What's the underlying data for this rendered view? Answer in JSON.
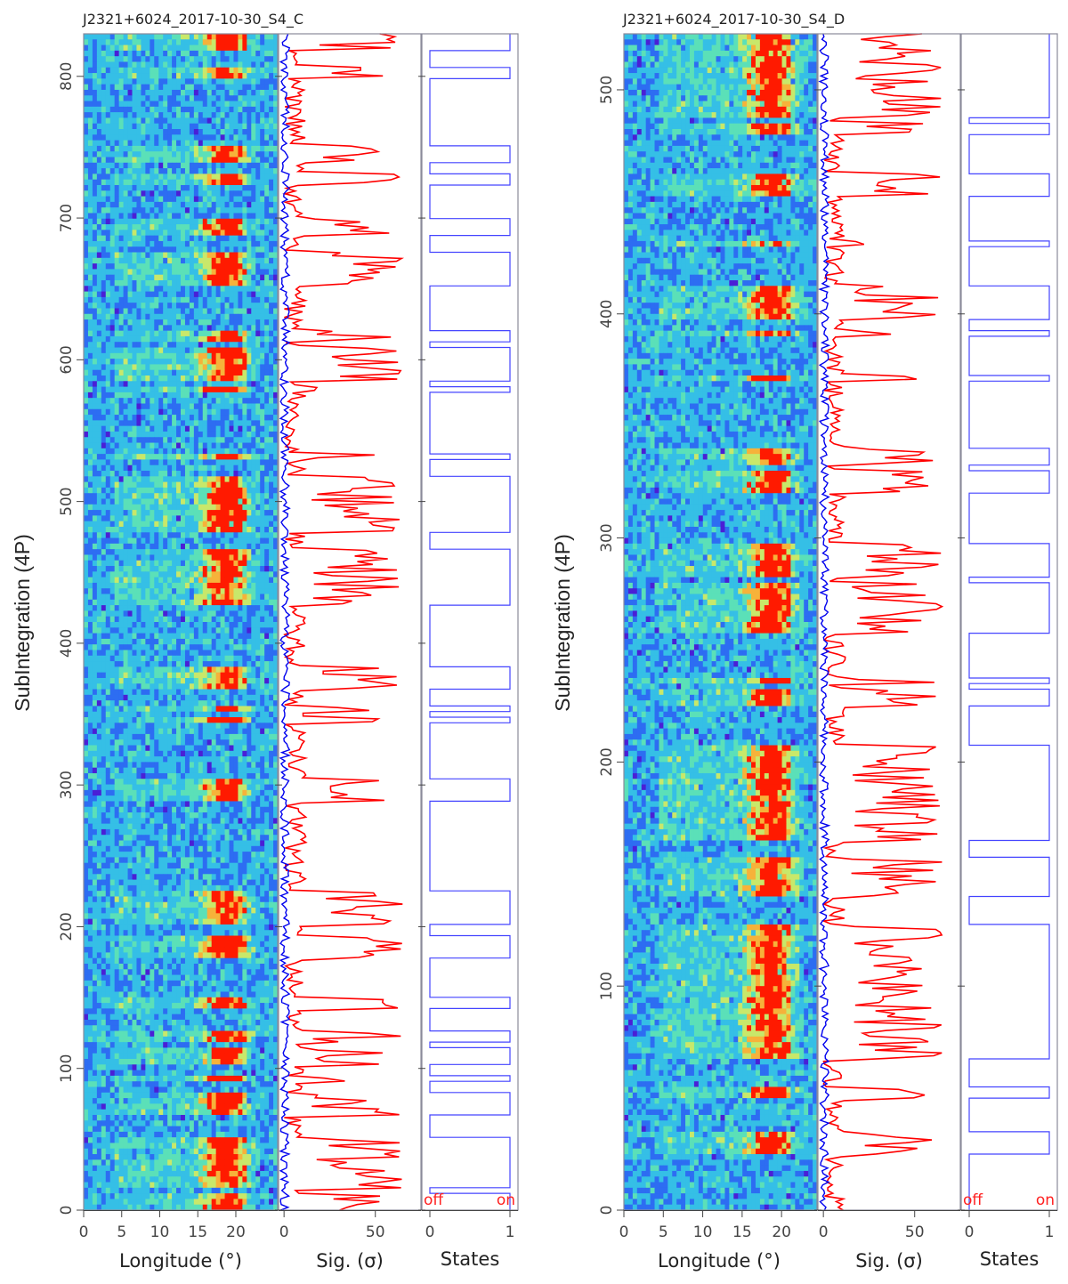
{
  "chart_data": [
    {
      "type": "heatmap",
      "title": "J2321+6024_2017-10-30_S4_C",
      "ylabel": "SubIntegration (4P)",
      "ylim": [
        0,
        830
      ],
      "yticks": [
        "0",
        "100",
        "200",
        "300",
        "400",
        "500",
        "600",
        "700",
        "800"
      ],
      "yticks_values": [
        0,
        100,
        200,
        300,
        400,
        500,
        600,
        700,
        800
      ],
      "panels": [
        {
          "name": "pulse-stack",
          "xlabel": "Longitude (°)",
          "xlim": [
            0,
            25.5
          ],
          "xticks": [
            "0",
            "5",
            "10",
            "15",
            "20"
          ],
          "xticks_values": [
            0,
            5,
            10,
            15,
            20
          ]
        },
        {
          "name": "significance",
          "xlabel": "Sig. (σ)",
          "xlim": [
            -3,
            75
          ],
          "xticks": [
            "0",
            "50"
          ],
          "xticks_values": [
            0,
            50
          ],
          "series": [
            "on-pulse significance (red)",
            "off-pulse significance (blue)"
          ]
        },
        {
          "name": "states",
          "xlabel": "States",
          "xlim": [
            -0.1,
            1.1
          ],
          "xticks": [
            "0",
            "1"
          ],
          "xticks_values": [
            0,
            1
          ],
          "state_labels": [
            "off",
            "on"
          ]
        }
      ]
    },
    {
      "type": "heatmap",
      "title": "J2321+6024_2017-10-30_S4_D",
      "ylabel": "SubIntegration (4P)",
      "ylim": [
        0,
        525
      ],
      "yticks": [
        "0",
        "100",
        "200",
        "300",
        "400",
        "500"
      ],
      "yticks_values": [
        0,
        100,
        200,
        300,
        400,
        500
      ],
      "panels": [
        {
          "name": "pulse-stack",
          "xlabel": "Longitude (°)",
          "xlim": [
            0,
            24.5
          ],
          "xticks": [
            "0",
            "5",
            "10",
            "15",
            "20"
          ],
          "xticks_values": [
            0,
            5,
            10,
            15,
            20
          ]
        },
        {
          "name": "significance",
          "xlabel": "Sig. (σ)",
          "xlim": [
            -3,
            75
          ],
          "xticks": [
            "0",
            "50"
          ],
          "xticks_values": [
            0,
            50
          ],
          "series": [
            "on-pulse significance (red)",
            "off-pulse significance (blue)"
          ]
        },
        {
          "name": "states",
          "xlabel": "States",
          "xlim": [
            -0.1,
            1.1
          ],
          "xticks": [
            "0",
            "1"
          ],
          "xticks_values": [
            0,
            1
          ],
          "state_labels": [
            "off",
            "on"
          ]
        }
      ]
    }
  ],
  "colors": {
    "on_signal": "#ff0000",
    "off_signal": "#0000ee",
    "states_line": "#4444ff",
    "heatmap_low": "#3a2ad8",
    "heatmap_mid": "#33c4e8",
    "heatmap_high": "#ff1a00"
  }
}
